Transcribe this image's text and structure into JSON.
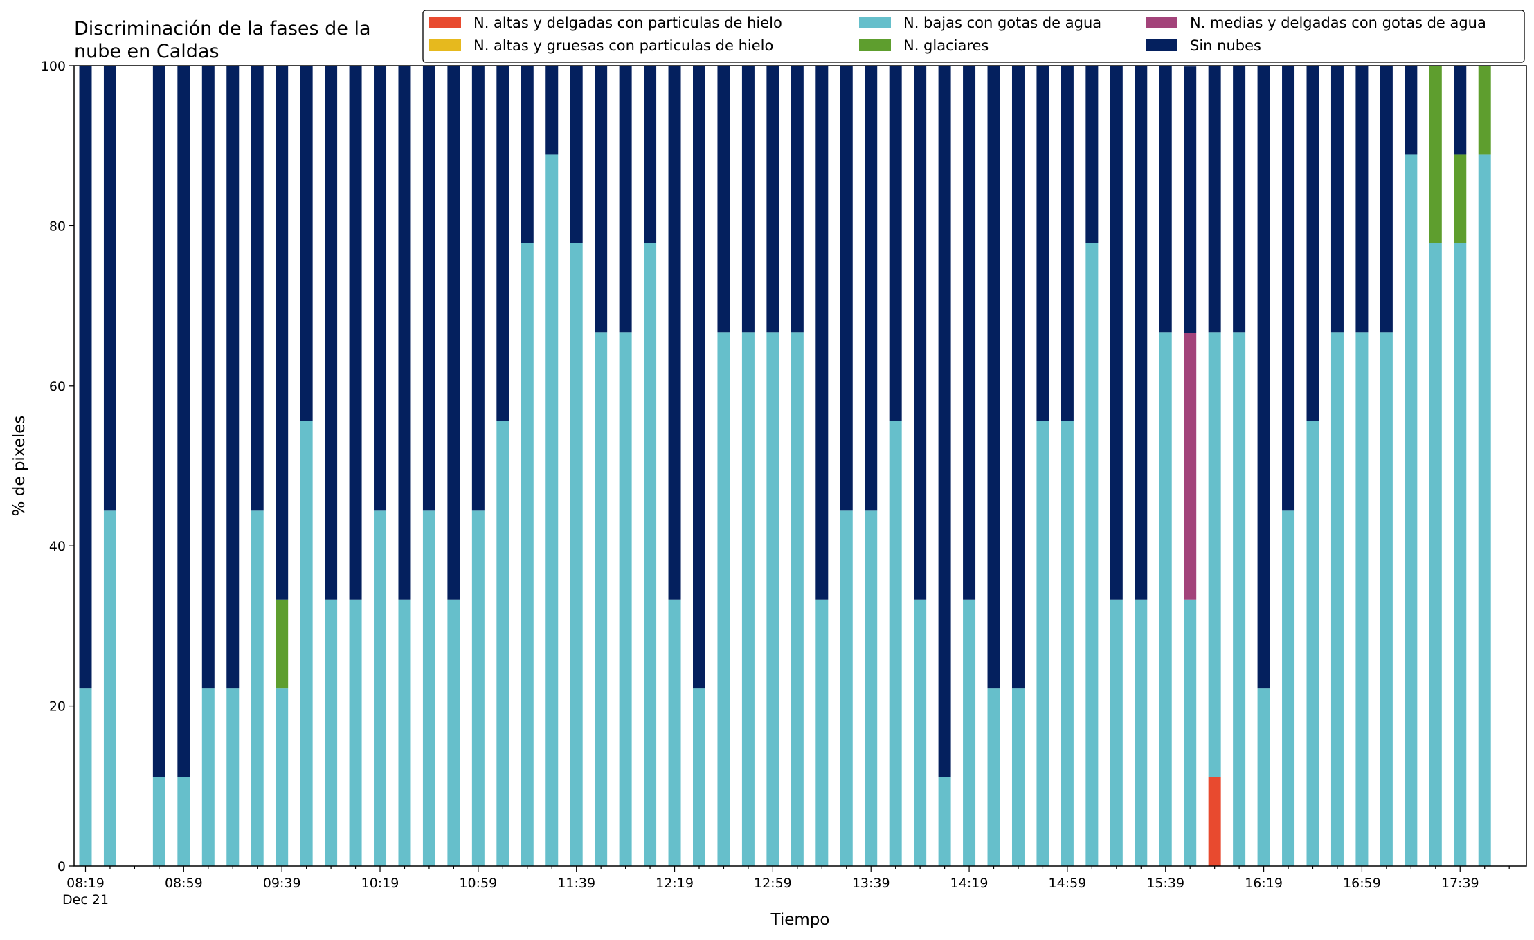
{
  "chart_data": {
    "type": "bar",
    "stacked": true,
    "title": "Discriminación de la fases de la nube en Caldas",
    "title_lines": [
      "Discriminación de la fases de la",
      "nube en Caldas"
    ],
    "xlabel": "Tiempo",
    "ylabel": "% de pixeles",
    "ylim": [
      0,
      100
    ],
    "yticks": [
      0,
      20,
      40,
      60,
      80,
      100
    ],
    "grid": false,
    "legend_position": "top-right",
    "x_start": "08:19",
    "x_interval_minutes": 10,
    "x_count": 58,
    "x_tick_labels": [
      "08:19",
      "08:59",
      "09:39",
      "10:19",
      "10:59",
      "11:39",
      "12:19",
      "12:59",
      "13:39",
      "14:19",
      "14:59",
      "15:39",
      "16:19",
      "16:59",
      "17:39"
    ],
    "x_date_label": "Dec 21",
    "series": [
      {
        "name": "N. altas y delgadas con particulas de hielo",
        "color": "#e84a2f",
        "values": [
          0,
          0,
          0,
          0,
          0,
          0,
          0,
          0,
          0,
          0,
          0,
          0,
          0,
          0,
          0,
          0,
          0,
          0,
          0,
          0,
          0,
          0,
          0,
          0,
          0,
          0,
          0,
          0,
          0,
          0,
          0,
          0,
          0,
          0,
          0,
          0,
          0,
          0,
          0,
          0,
          0,
          0,
          0,
          0,
          0,
          0,
          11.1,
          0,
          0,
          0,
          0,
          0,
          0,
          0,
          0,
          0,
          0,
          0
        ]
      },
      {
        "name": "N. altas y gruesas con particulas de hielo",
        "color": "#e6b91e",
        "values": [
          0,
          0,
          0,
          0,
          0,
          0,
          0,
          0,
          0,
          0,
          0,
          0,
          0,
          0,
          0,
          0,
          0,
          0,
          0,
          0,
          0,
          0,
          0,
          0,
          0,
          0,
          0,
          0,
          0,
          0,
          0,
          0,
          0,
          0,
          0,
          0,
          0,
          0,
          0,
          0,
          0,
          0,
          0,
          0,
          0,
          0,
          0,
          0,
          0,
          0,
          0,
          0,
          0,
          0,
          0,
          0,
          0,
          0
        ]
      },
      {
        "name": "N. bajas con gotas de agua",
        "color": "#66bfcb",
        "values": [
          22.2,
          44.4,
          0,
          11.1,
          11.1,
          22.2,
          22.2,
          44.4,
          22.2,
          55.6,
          33.3,
          33.3,
          44.4,
          33.3,
          44.4,
          33.3,
          44.4,
          55.6,
          77.8,
          88.9,
          77.8,
          66.7,
          66.7,
          77.8,
          33.3,
          22.2,
          66.7,
          66.7,
          66.7,
          66.7,
          33.3,
          44.4,
          44.4,
          55.6,
          33.3,
          11.1,
          33.3,
          22.2,
          22.2,
          55.6,
          55.6,
          77.8,
          33.3,
          33.3,
          66.7,
          33.3,
          55.6,
          66.7,
          22.2,
          44.4,
          55.6,
          66.7,
          66.7,
          66.7,
          88.9,
          77.8,
          77.8,
          88.9
        ]
      },
      {
        "name": "N. glaciares",
        "color": "#5e9e2e",
        "values": [
          0,
          0,
          0,
          0,
          0,
          0,
          0,
          0,
          11.1,
          0,
          0,
          0,
          0,
          0,
          0,
          0,
          0,
          0,
          0,
          0,
          0,
          0,
          0,
          0,
          0,
          0,
          0,
          0,
          0,
          0,
          0,
          0,
          0,
          0,
          0,
          0,
          0,
          0,
          0,
          0,
          0,
          0,
          0,
          0,
          0,
          0,
          0,
          0,
          0,
          0,
          0,
          0,
          0,
          0,
          0,
          22.2,
          11.1,
          11.1
        ]
      },
      {
        "name": "N. medias y delgadas con gotas de agua",
        "color": "#a3437a",
        "values": [
          0,
          0,
          0,
          0,
          0,
          0,
          0,
          0,
          0,
          0,
          0,
          0,
          0,
          0,
          0,
          0,
          0,
          0,
          0,
          0,
          0,
          0,
          0,
          0,
          0,
          0,
          0,
          0,
          0,
          0,
          0,
          0,
          0,
          0,
          0,
          0,
          0,
          0,
          0,
          0,
          0,
          0,
          0,
          0,
          0,
          33.3,
          0,
          0,
          0,
          0,
          0,
          0,
          0,
          0,
          0,
          0,
          0,
          0
        ]
      },
      {
        "name": "Sin nubes",
        "color": "#04205e",
        "values": [
          77.8,
          55.6,
          0,
          88.9,
          88.9,
          77.8,
          77.8,
          55.6,
          66.7,
          44.4,
          66.7,
          66.7,
          55.6,
          66.7,
          55.6,
          66.7,
          55.6,
          44.4,
          22.2,
          11.1,
          22.2,
          33.3,
          33.3,
          22.2,
          66.7,
          77.8,
          33.3,
          33.3,
          33.3,
          33.3,
          66.7,
          55.6,
          55.6,
          44.4,
          66.7,
          88.9,
          66.7,
          77.8,
          77.8,
          44.4,
          44.4,
          22.2,
          66.7,
          66.7,
          33.3,
          33.3,
          33.3,
          33.3,
          77.8,
          55.6,
          44.4,
          33.3,
          33.3,
          33.3,
          11.1,
          0,
          11.1,
          0
        ]
      }
    ]
  }
}
